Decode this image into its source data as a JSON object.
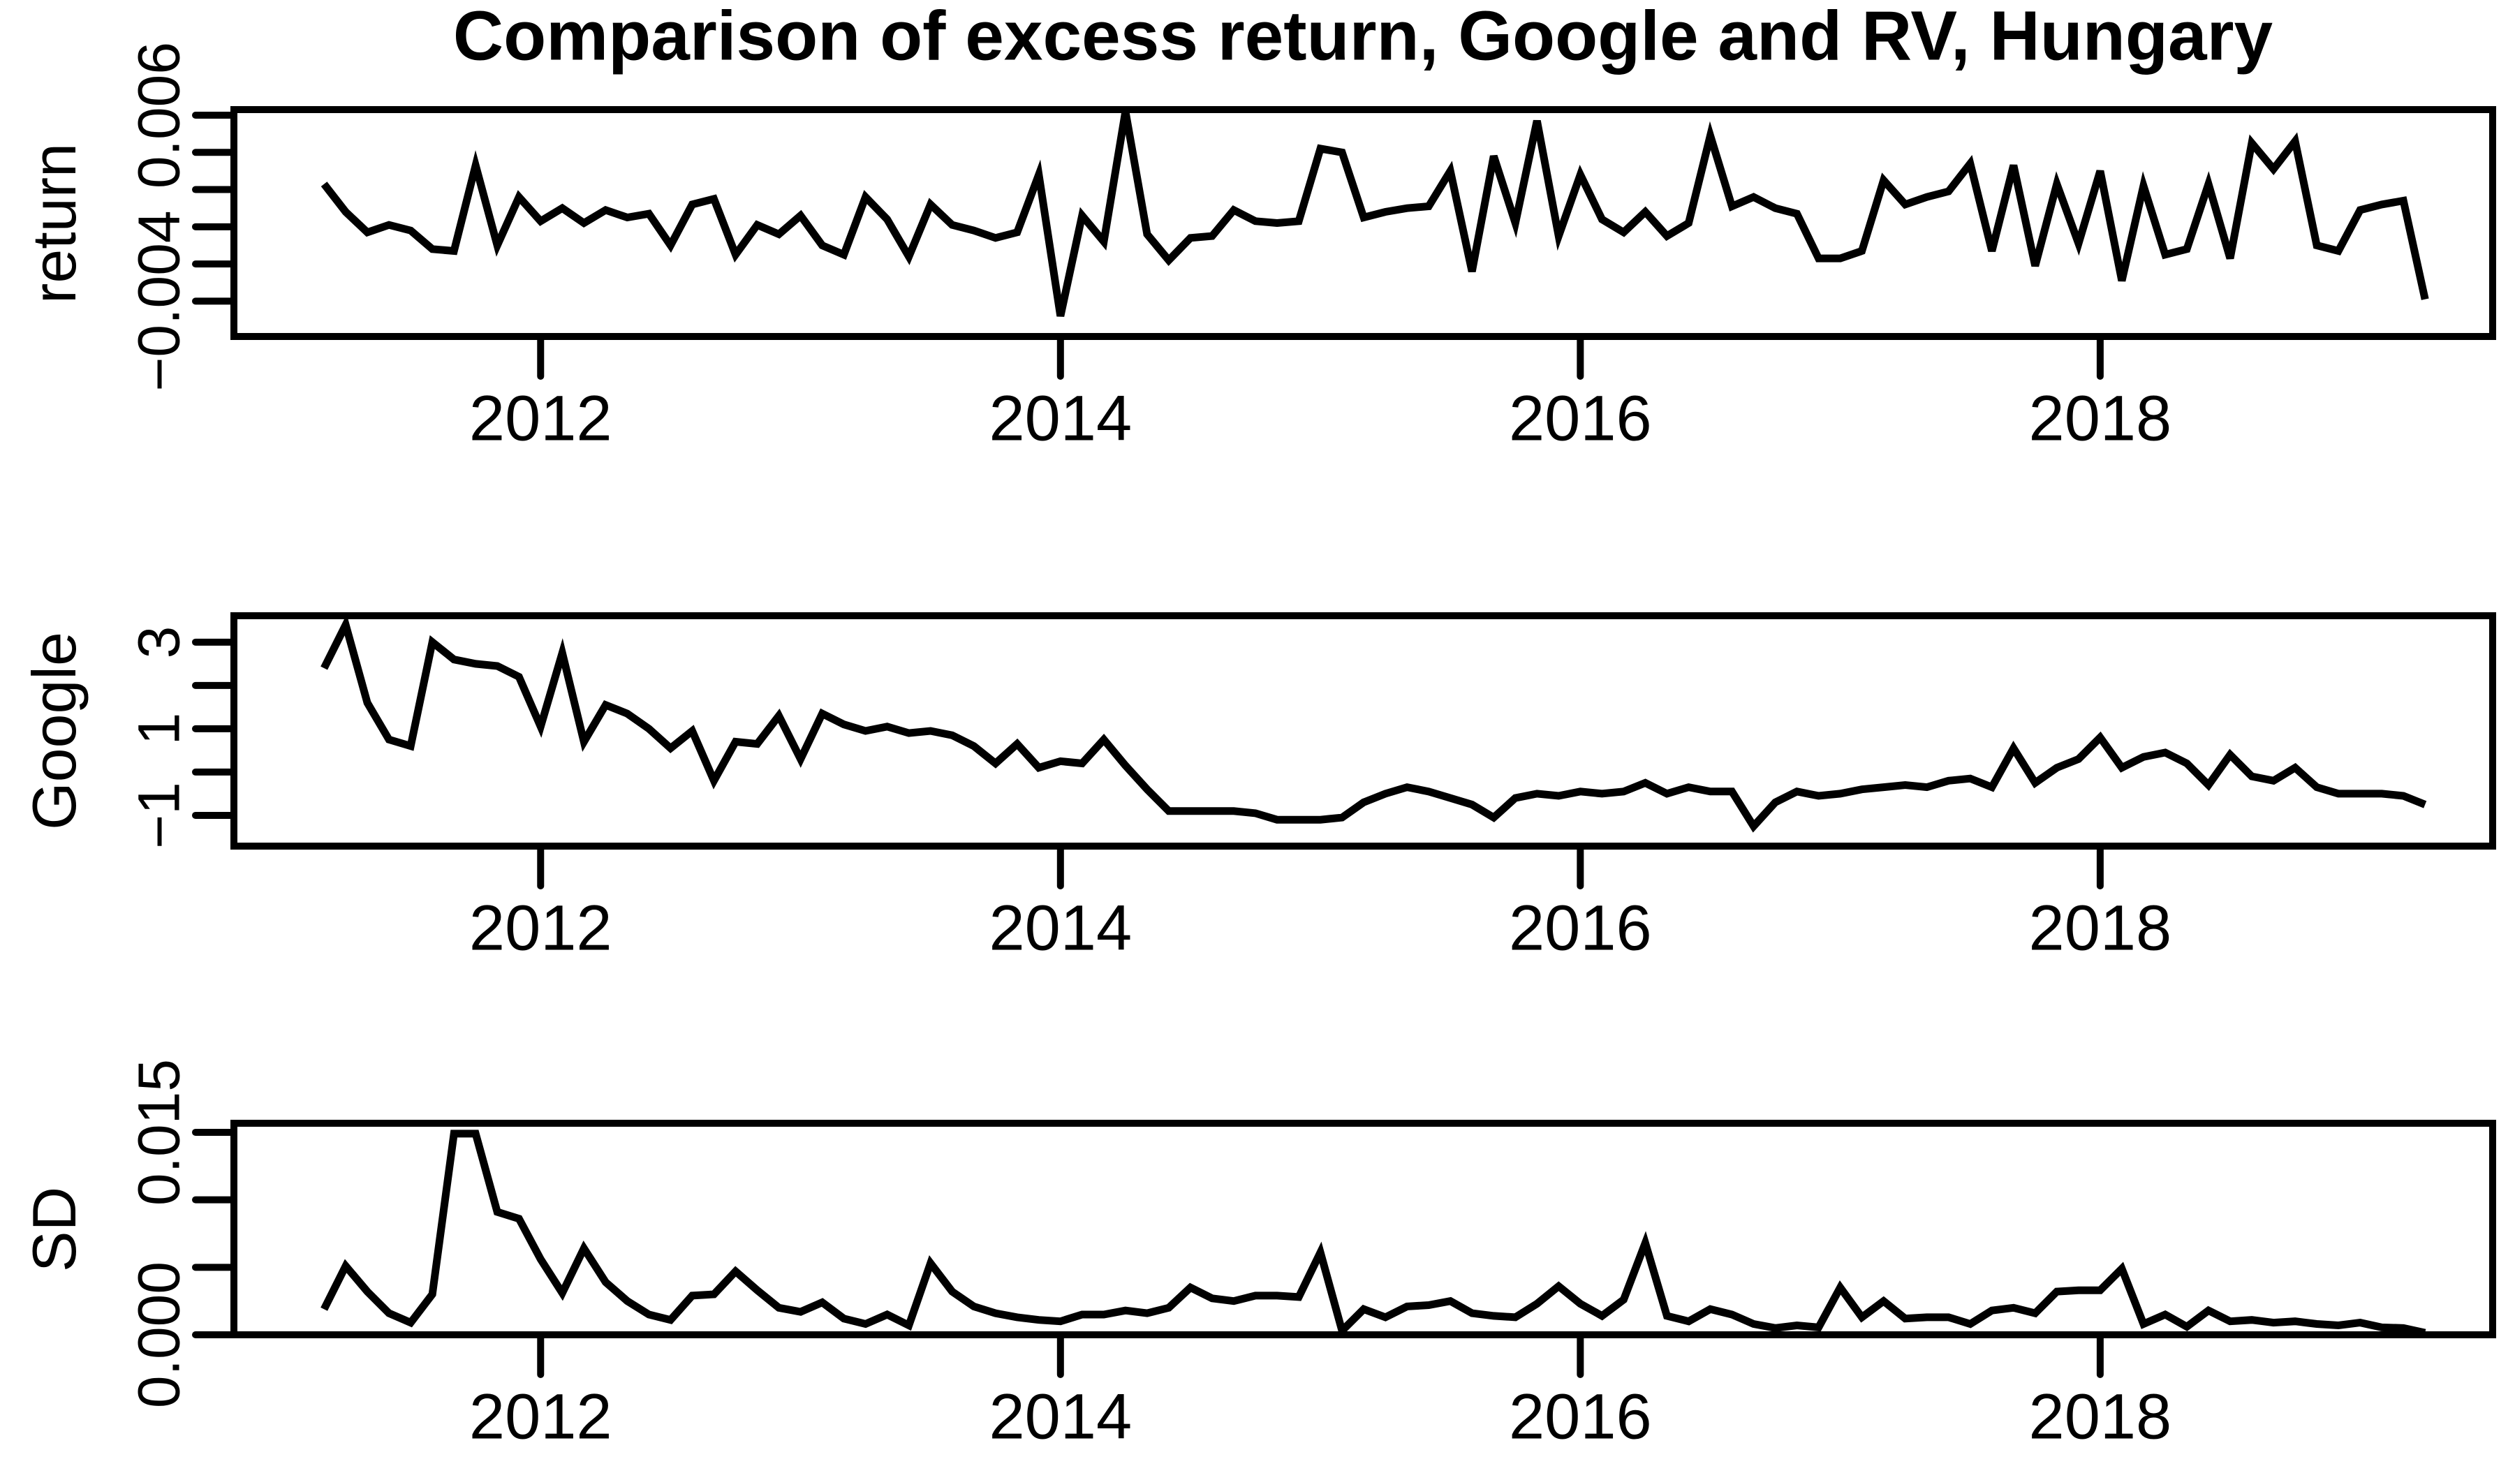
{
  "title": "Comparison of excess return, Google and RV, Hungary",
  "x_axis": {
    "ticks": [
      {
        "value": 2012,
        "label": "2012"
      },
      {
        "value": 2014,
        "label": "2014"
      },
      {
        "value": 2016,
        "label": "2016"
      },
      {
        "value": 2018,
        "label": "2018"
      }
    ],
    "range": [
      2010.82,
      2019.51
    ]
  },
  "line_color": "#000000",
  "chart_data": [
    {
      "type": "line",
      "name": "return",
      "ylabel": "return",
      "x_start_year": 2011.1667,
      "x_step_years": 0.0833333,
      "ylim": [
        -0.0059,
        0.0063
      ],
      "y_ticks": [
        {
          "value": 0.006,
          "label": "0.006"
        },
        {
          "value": 0.004,
          "label": ""
        },
        {
          "value": 0.002,
          "label": ""
        },
        {
          "value": 0.0,
          "label": ""
        },
        {
          "value": -0.002,
          "label": ""
        },
        {
          "value": -0.004,
          "label": "−0.004"
        }
      ],
      "values": [
        0.0023,
        0.0008,
        -0.0003,
        0.0001,
        -0.0002,
        -0.0012,
        -0.0013,
        0.0033,
        -0.001,
        0.0016,
        0.0003,
        0.001,
        0.0002,
        0.0009,
        0.0005,
        0.0007,
        -0.001,
        0.0012,
        0.0015,
        -0.0015,
        0.0001,
        -0.0004,
        0.0006,
        -0.001,
        -0.0015,
        0.0016,
        0.0004,
        -0.0016,
        0.0012,
        0.0001,
        -0.0002,
        -0.0006,
        -0.0003,
        0.0028,
        -0.0048,
        0.0006,
        -0.0008,
        0.0062,
        -0.0004,
        -0.0018,
        -0.0006,
        -0.0005,
        0.0009,
        0.0003,
        0.0002,
        0.0003,
        0.0042,
        0.004,
        0.0005,
        0.0008,
        0.001,
        0.0011,
        0.003,
        -0.0024,
        0.0038,
        0.0002,
        0.0057,
        -0.0005,
        0.0028,
        0.0004,
        -0.0003,
        0.0008,
        -0.0005,
        0.0002,
        0.0049,
        0.0011,
        0.0016,
        0.001,
        0.0007,
        -0.0017,
        -0.0017,
        -0.0013,
        0.0025,
        0.0012,
        0.0016,
        0.0019,
        0.0034,
        -0.0013,
        0.0033,
        -0.0021,
        0.0023,
        -0.0009,
        0.003,
        -0.0029,
        0.0022,
        -0.0015,
        -0.0012,
        0.0023,
        -0.0017,
        0.0045,
        0.0031,
        0.0046,
        -0.001,
        -0.0013,
        0.0009,
        0.0012,
        0.0014,
        -0.0039
      ]
    },
    {
      "type": "line",
      "name": "google",
      "ylabel": "Google",
      "x_start_year": 2011.1667,
      "x_step_years": 0.0833333,
      "ylim": [
        -1.71,
        3.61
      ],
      "y_ticks": [
        {
          "value": 3,
          "label": "3"
        },
        {
          "value": 2,
          "label": ""
        },
        {
          "value": 1,
          "label": "1"
        },
        {
          "value": 0,
          "label": ""
        },
        {
          "value": -1,
          "label": "−1"
        }
      ],
      "values": [
        2.4,
        3.4,
        1.6,
        0.75,
        0.6,
        3.0,
        2.6,
        2.5,
        2.45,
        2.2,
        1.05,
        2.75,
        0.7,
        1.55,
        1.35,
        1.0,
        0.55,
        0.95,
        -0.2,
        0.7,
        0.65,
        1.3,
        0.3,
        1.35,
        1.1,
        0.95,
        1.05,
        0.9,
        0.95,
        0.85,
        0.6,
        0.2,
        0.65,
        0.1,
        0.25,
        0.2,
        0.75,
        0.15,
        -0.4,
        -0.9,
        -0.9,
        -0.9,
        -0.9,
        -0.95,
        -1.1,
        -1.1,
        -1.1,
        -1.05,
        -0.7,
        -0.5,
        -0.35,
        -0.45,
        -0.6,
        -0.75,
        -1.05,
        -0.6,
        -0.5,
        -0.55,
        -0.45,
        -0.5,
        -0.45,
        -0.25,
        -0.5,
        -0.35,
        -0.45,
        -0.45,
        -1.25,
        -0.7,
        -0.45,
        -0.55,
        -0.5,
        -0.4,
        -0.35,
        -0.3,
        -0.35,
        -0.2,
        -0.15,
        -0.35,
        0.55,
        -0.25,
        0.1,
        0.3,
        0.8,
        0.1,
        0.35,
        0.45,
        0.2,
        -0.3,
        0.4,
        -0.1,
        -0.2,
        0.1,
        -0.35,
        -0.5,
        -0.5,
        -0.5,
        -0.55,
        -0.75
      ]
    },
    {
      "type": "line",
      "name": "sd",
      "ylabel": "SD",
      "x_start_year": 2011.1667,
      "x_step_years": 0.0833333,
      "ylim": [
        0.0,
        0.01567
      ],
      "y_ticks": [
        {
          "value": 0.015,
          "label": "0.015"
        },
        {
          "value": 0.01,
          "label": ""
        },
        {
          "value": 0.005,
          "label": ""
        },
        {
          "value": 0.0,
          "label": "0.000"
        }
      ],
      "values": [
        0.0019,
        0.0051,
        0.0032,
        0.0016,
        0.0009,
        0.003,
        0.0149,
        0.0149,
        0.0091,
        0.0086,
        0.0056,
        0.0031,
        0.0064,
        0.0039,
        0.0025,
        0.0015,
        0.0011,
        0.0029,
        0.003,
        0.0047,
        0.0033,
        0.002,
        0.0017,
        0.0024,
        0.0012,
        0.0008,
        0.0015,
        0.0007,
        0.0053,
        0.0032,
        0.0021,
        0.0016,
        0.0013,
        0.0011,
        0.001,
        0.0015,
        0.0015,
        0.0018,
        0.0016,
        0.002,
        0.0035,
        0.0027,
        0.0025,
        0.0029,
        0.0029,
        0.0028,
        0.0061,
        0.0003,
        0.0019,
        0.0013,
        0.0021,
        0.0022,
        0.0025,
        0.0016,
        0.0014,
        0.0013,
        0.0023,
        0.0036,
        0.0023,
        0.0014,
        0.0026,
        0.0068,
        0.0014,
        0.001,
        0.0019,
        0.0015,
        0.0008,
        0.0005,
        0.0007,
        0.00055,
        0.0035,
        0.0013,
        0.0025,
        0.0012,
        0.0013,
        0.0013,
        0.0008,
        0.0018,
        0.002,
        0.0016,
        0.0032,
        0.0033,
        0.0033,
        0.0049,
        0.0008,
        0.0015,
        0.0006,
        0.0018,
        0.001,
        0.0011,
        0.0009,
        0.001,
        0.0008,
        0.0007,
        0.0009,
        0.00055,
        0.0005,
        0.00015
      ]
    }
  ]
}
